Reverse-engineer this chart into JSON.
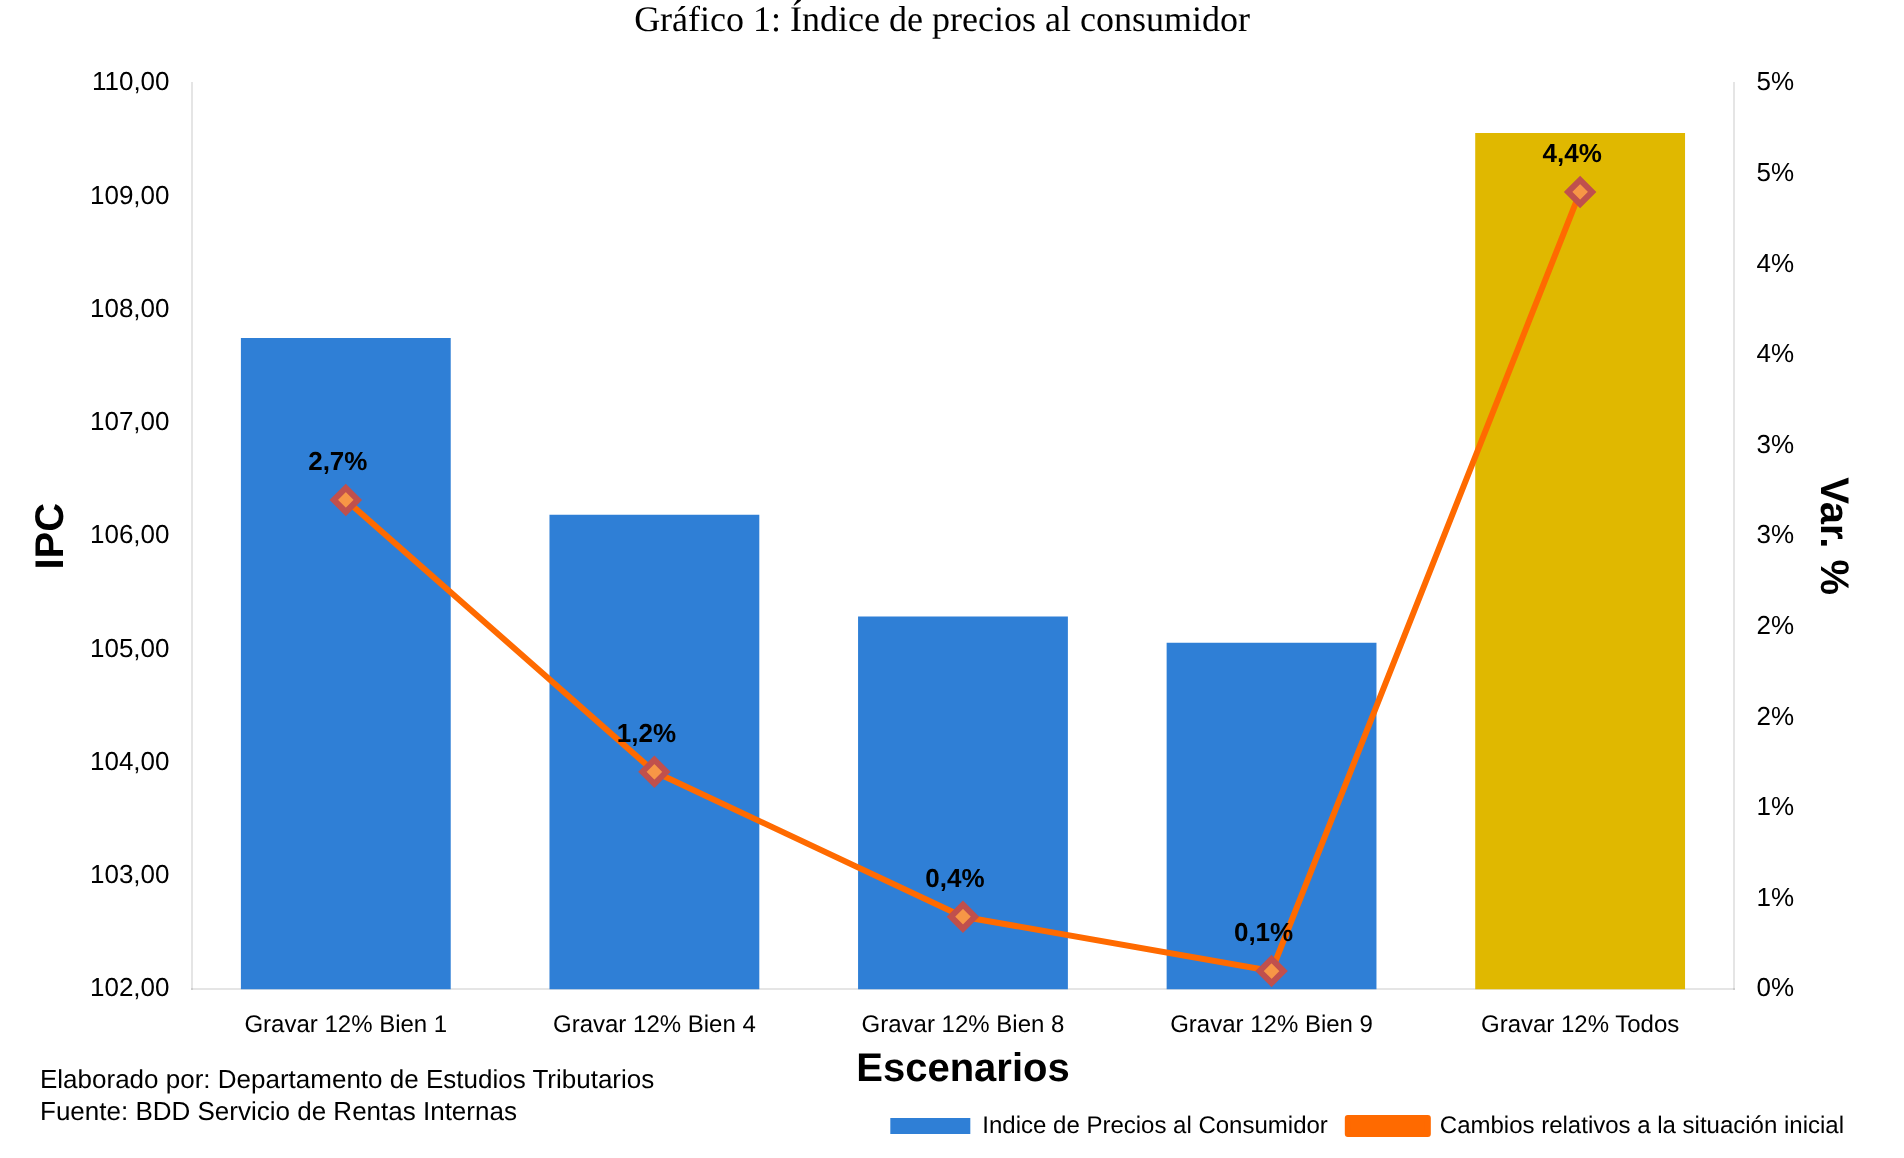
{
  "chart_data": {
    "type": "bar",
    "title": "Gráfico 1: Índice de precios al consumidor",
    "xlabel": "Escenarios",
    "ylabel": "IPC",
    "y2label": "Var. %",
    "categories": [
      "Gravar 12% Bien 1",
      "Gravar 12% Bien 4",
      "Gravar 12% Bien 8",
      "Gravar 12% Bien 9",
      "Gravar 12% Todos"
    ],
    "series": [
      {
        "name": "Indice de Precios al Consumidor",
        "color": "#2f7fd6",
        "colors": [
          "#2f7fd6",
          "#2f7fd6",
          "#2f7fd6",
          "#2f7fd6",
          "#e0b800"
        ],
        "values": [
          107.75,
          106.19,
          105.29,
          105.06,
          109.56
        ]
      },
      {
        "name": "Cambios relativos a la situación inicial",
        "type": "line",
        "axis": "y2",
        "color": "#ff6a00",
        "marker": "diamond",
        "values": [
          2.7,
          1.2,
          0.4,
          0.1,
          4.4
        ],
        "value_labels": [
          "2,7%",
          "1,2%",
          "0,4%",
          "0,1%",
          "4,4%"
        ]
      }
    ],
    "ylim": [
      102,
      110
    ],
    "yticks": [
      {
        "value": 102,
        "label": "102,00"
      },
      {
        "value": 103,
        "label": "103,00"
      },
      {
        "value": 104,
        "label": "104,00"
      },
      {
        "value": 105,
        "label": "105,00"
      },
      {
        "value": 106,
        "label": "106,00"
      },
      {
        "value": 107,
        "label": "107,00"
      },
      {
        "value": 108,
        "label": "108,00"
      },
      {
        "value": 109,
        "label": "109,00"
      },
      {
        "value": 110,
        "label": "110,00"
      }
    ],
    "y2lim": [
      0,
      5
    ],
    "y2ticks": [
      {
        "value": 0,
        "label": "0%"
      },
      {
        "value": 0.5,
        "label": "1%"
      },
      {
        "value": 1,
        "label": "1%"
      },
      {
        "value": 1.5,
        "label": "2%"
      },
      {
        "value": 2,
        "label": "2%"
      },
      {
        "value": 2.5,
        "label": "3%"
      },
      {
        "value": 3,
        "label": "3%"
      },
      {
        "value": 3.5,
        "label": "4%"
      },
      {
        "value": 4,
        "label": "4%"
      },
      {
        "value": 4.5,
        "label": "5%"
      },
      {
        "value": 5,
        "label": "5%"
      }
    ],
    "grid": false,
    "legend": "bottom right",
    "annotations": [
      "Elaborado por: Departamento de Estudios Tributarios",
      "Fuente: BDD Servicio de Rentas Internas"
    ]
  }
}
